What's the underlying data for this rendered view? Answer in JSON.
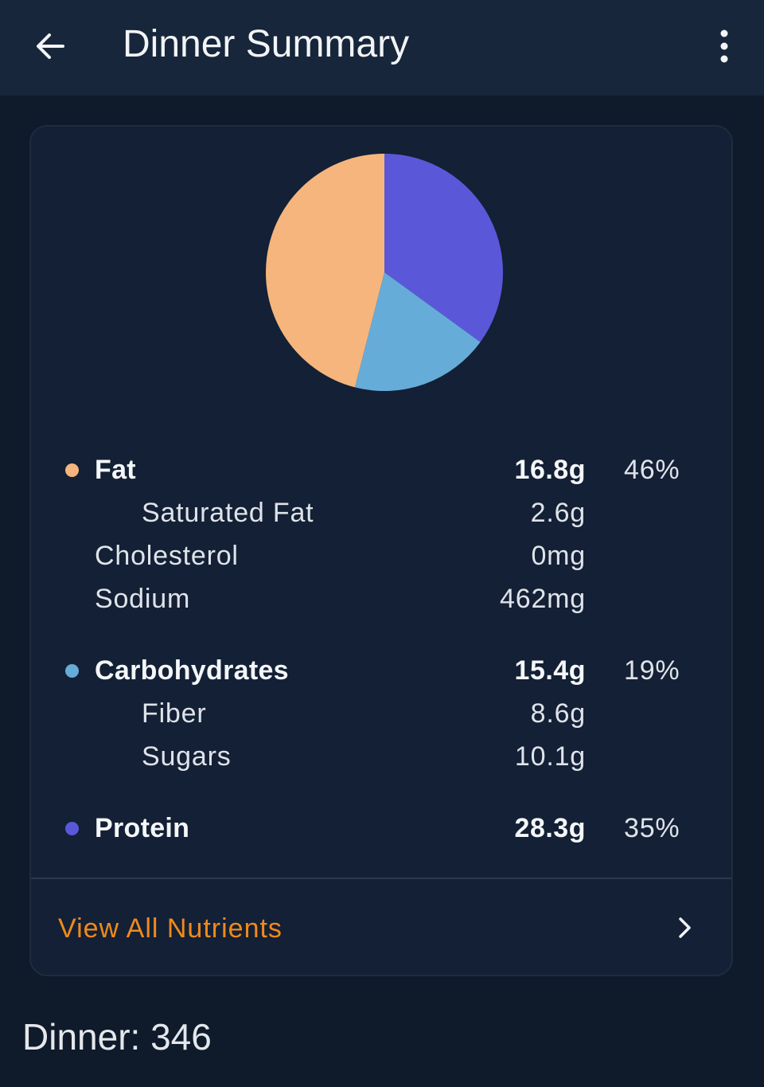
{
  "appbar": {
    "title": "Dinner Summary",
    "back_icon": "arrow-left-icon",
    "menu_icon": "more-vert-icon"
  },
  "colors": {
    "fat": "#f6b57c",
    "carbohydrates": "#66acd9",
    "protein": "#5b57d9",
    "accent": "#f08a1c"
  },
  "chart_data": {
    "type": "pie",
    "slices": [
      {
        "label": "Protein",
        "value": 35,
        "color": "#5b57d9"
      },
      {
        "label": "Carbohydrates",
        "value": 19,
        "color": "#66acd9"
      },
      {
        "label": "Fat",
        "value": 46,
        "color": "#f6b57c"
      }
    ]
  },
  "nutrients": {
    "fat": {
      "label": "Fat",
      "amount": "16.8g",
      "percent": "46%"
    },
    "saturated_fat": {
      "label": "Saturated Fat",
      "amount": "2.6g"
    },
    "cholesterol": {
      "label": "Cholesterol",
      "amount": "0mg"
    },
    "sodium": {
      "label": "Sodium",
      "amount": "462mg"
    },
    "carbohydrates": {
      "label": "Carbohydrates",
      "amount": "15.4g",
      "percent": "19%"
    },
    "fiber": {
      "label": "Fiber",
      "amount": "8.6g"
    },
    "sugars": {
      "label": "Sugars",
      "amount": "10.1g"
    },
    "protein": {
      "label": "Protein",
      "amount": "28.3g",
      "percent": "35%"
    }
  },
  "view_all": {
    "label": "View All Nutrients",
    "icon": "chevron-right-icon"
  },
  "footer": {
    "text": "Dinner: 346"
  }
}
